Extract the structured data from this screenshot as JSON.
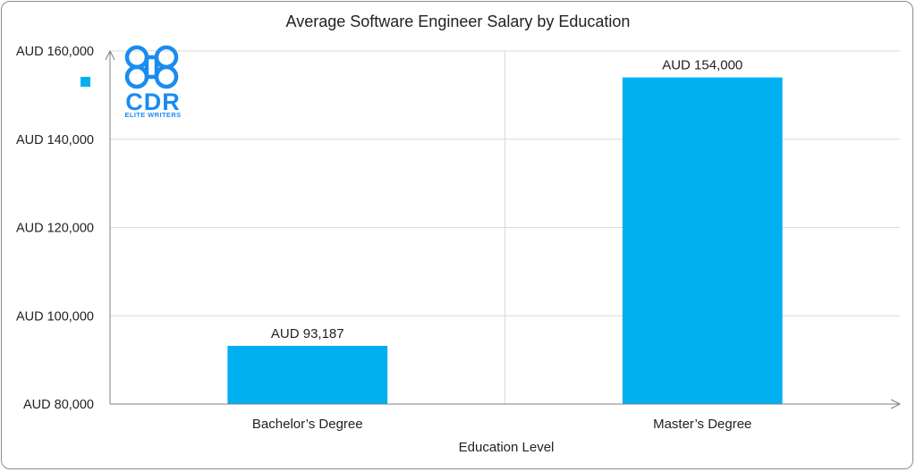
{
  "chart_data": {
    "type": "bar",
    "title": "Average Software Engineer Salary by Education",
    "xlabel": "Education Level",
    "ylabel": "",
    "categories": [
      "Bachelor’s Degree",
      "Master’s Degree"
    ],
    "values": [
      93187,
      154000
    ],
    "data_labels": [
      "AUD 93,187",
      "AUD 154,000"
    ],
    "ylim": [
      80000,
      160000
    ],
    "yticks": [
      80000,
      100000,
      120000,
      140000,
      160000
    ],
    "ytick_labels": [
      "AUD 80,000",
      "AUD 100,000",
      "AUD 120,000",
      "AUD 140,000",
      "AUD 160,000"
    ],
    "grid": true,
    "legend_position": "top-left",
    "bar_color": "#00b0f0",
    "grid_color": "#d9d9d9",
    "axis_color": "#7f7f7f"
  },
  "logo": {
    "text": "CDR",
    "subtext": "ELITE WRITERS",
    "color": "#1a8cf0"
  }
}
